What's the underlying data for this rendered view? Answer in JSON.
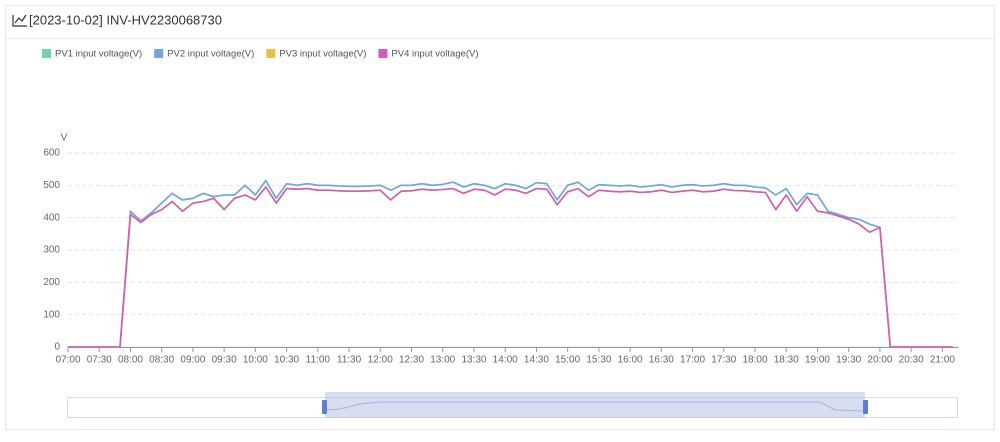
{
  "chart_data": {
    "type": "line",
    "title": "[2023-10-02] INV-HV2230068730",
    "y_label": "V",
    "grid": true,
    "legend": "top-left",
    "x": [
      "07:00",
      "07:10",
      "07:20",
      "07:30",
      "07:40",
      "07:50",
      "08:00",
      "08:10",
      "08:20",
      "08:30",
      "08:40",
      "08:50",
      "09:00",
      "09:10",
      "09:20",
      "09:30",
      "09:40",
      "09:50",
      "10:00",
      "10:10",
      "10:20",
      "10:30",
      "10:40",
      "10:50",
      "11:00",
      "11:10",
      "11:20",
      "11:30",
      "11:40",
      "11:50",
      "12:00",
      "12:10",
      "12:20",
      "12:30",
      "12:40",
      "12:50",
      "13:00",
      "13:10",
      "13:20",
      "13:30",
      "13:40",
      "13:50",
      "14:00",
      "14:10",
      "14:20",
      "14:30",
      "14:40",
      "14:50",
      "15:00",
      "15:10",
      "15:20",
      "15:30",
      "15:40",
      "15:50",
      "16:00",
      "16:10",
      "16:20",
      "16:30",
      "16:40",
      "16:50",
      "17:00",
      "17:10",
      "17:20",
      "17:30",
      "17:40",
      "17:50",
      "18:00",
      "18:10",
      "18:20",
      "18:30",
      "18:40",
      "18:50",
      "19:00",
      "19:10",
      "19:20",
      "19:30",
      "19:40",
      "19:50",
      "20:00",
      "20:10",
      "20:20",
      "20:30",
      "20:40",
      "20:50",
      "21:00",
      "21:10"
    ],
    "xlim": [
      "07:00",
      "21:15"
    ],
    "xticks": [
      "07:00",
      "07:30",
      "08:00",
      "08:30",
      "09:00",
      "09:30",
      "10:00",
      "10:30",
      "11:00",
      "11:30",
      "12:00",
      "12:30",
      "13:00",
      "13:30",
      "14:00",
      "14:30",
      "15:00",
      "15:30",
      "16:00",
      "16:30",
      "17:00",
      "17:30",
      "18:00",
      "18:30",
      "19:00",
      "19:30",
      "20:00",
      "20:30",
      "21:00"
    ],
    "ylim": [
      0,
      600
    ],
    "yticks": [
      0,
      100,
      200,
      300,
      400,
      500,
      600
    ],
    "series": [
      {
        "name": "PV1 input voltage(V)",
        "color": "#73d2a9",
        "values": [
          0,
          0,
          0,
          0,
          0,
          0,
          420,
          390,
          415,
          445,
          475,
          455,
          460,
          475,
          465,
          470,
          470,
          500,
          470,
          515,
          460,
          505,
          500,
          505,
          500,
          500,
          498,
          497,
          497,
          498,
          500,
          485,
          500,
          500,
          505,
          500,
          503,
          510,
          495,
          505,
          500,
          490,
          505,
          500,
          490,
          508,
          505,
          455,
          500,
          510,
          485,
          502,
          500,
          498,
          500,
          495,
          498,
          502,
          495,
          500,
          502,
          498,
          500,
          505,
          500,
          500,
          495,
          492,
          470,
          490,
          440,
          475,
          470,
          420,
          410,
          400,
          395,
          380,
          370,
          0,
          0,
          0,
          0,
          0,
          0,
          0
        ]
      },
      {
        "name": "PV2 input voltage(V)",
        "color": "#75a3e8",
        "values": [
          0,
          0,
          0,
          0,
          0,
          0,
          420,
          390,
          415,
          445,
          475,
          455,
          460,
          475,
          465,
          470,
          470,
          500,
          470,
          515,
          460,
          505,
          500,
          505,
          500,
          500,
          498,
          497,
          497,
          498,
          500,
          485,
          500,
          500,
          505,
          500,
          503,
          510,
          495,
          505,
          500,
          490,
          505,
          500,
          490,
          508,
          505,
          455,
          500,
          510,
          485,
          502,
          500,
          498,
          500,
          495,
          498,
          502,
          495,
          500,
          502,
          498,
          500,
          505,
          500,
          500,
          495,
          492,
          470,
          490,
          440,
          475,
          470,
          420,
          410,
          400,
          395,
          380,
          370,
          0,
          0,
          0,
          0,
          0,
          0,
          0
        ]
      },
      {
        "name": "PV3 input voltage(V)",
        "color": "#e8c14a",
        "values": [
          0,
          0,
          0,
          0,
          0,
          0,
          410,
          385,
          410,
          425,
          450,
          420,
          445,
          450,
          460,
          425,
          460,
          470,
          455,
          495,
          445,
          490,
          488,
          490,
          485,
          485,
          483,
          482,
          482,
          483,
          485,
          455,
          482,
          483,
          488,
          485,
          487,
          490,
          475,
          488,
          485,
          470,
          488,
          485,
          475,
          490,
          488,
          440,
          480,
          490,
          465,
          485,
          482,
          480,
          482,
          478,
          480,
          485,
          478,
          482,
          485,
          480,
          482,
          488,
          484,
          483,
          480,
          478,
          425,
          470,
          420,
          465,
          420,
          415,
          405,
          395,
          380,
          355,
          370,
          0,
          0,
          0,
          0,
          0,
          0,
          0
        ]
      },
      {
        "name": "PV4 input voltage(V)",
        "color": "#d45cb2",
        "values": [
          0,
          0,
          0,
          0,
          0,
          0,
          410,
          385,
          410,
          425,
          450,
          420,
          445,
          450,
          460,
          425,
          460,
          470,
          455,
          495,
          445,
          490,
          488,
          490,
          485,
          485,
          483,
          482,
          482,
          483,
          485,
          455,
          482,
          483,
          488,
          485,
          487,
          490,
          475,
          488,
          485,
          470,
          488,
          485,
          475,
          490,
          488,
          440,
          480,
          490,
          465,
          485,
          482,
          480,
          482,
          478,
          480,
          485,
          478,
          482,
          485,
          480,
          482,
          488,
          484,
          483,
          480,
          478,
          425,
          470,
          420,
          465,
          420,
          415,
          405,
          395,
          380,
          355,
          370,
          0,
          0,
          0,
          0,
          0,
          0,
          0
        ]
      }
    ]
  }
}
